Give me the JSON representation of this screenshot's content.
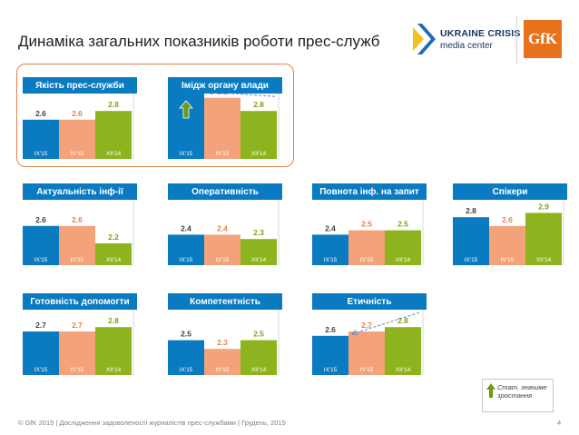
{
  "title": "Динаміка загальних показників роботи прес-служб",
  "logos": {
    "ucmc_line1": "UKRAINE CRISIS",
    "ucmc_line2": "media center",
    "gfk": "GfK"
  },
  "colors": {
    "header": "#0a7ac1",
    "bar_ix15": "#0a7ac1",
    "bar_iv15": "#f4a27a",
    "bar_xii14": "#8db41e",
    "label_ix15": "#404040",
    "label_iv15": "#e0834a",
    "label_xii14": "#8a9a1c",
    "significant_growth": "#6a9a1c",
    "trend_arrow": "#4a8fd0"
  },
  "chart_data": [
    {
      "type": "bar",
      "title": "Якість прес-служби",
      "categories": [
        "IX'15",
        "IV'15",
        "XII'14"
      ],
      "values": [
        2.6,
        2.6,
        2.8
      ],
      "significant": false,
      "trend_arrow": false
    },
    {
      "type": "bar",
      "title": "Імідж органу влади",
      "categories": [
        "IX'15",
        "IV'15",
        "XII'14"
      ],
      "values": [
        3.2,
        3.1,
        2.8
      ],
      "significant": true,
      "trend_arrow": true
    },
    {
      "type": "bar",
      "title": "Актуальність інф-ії",
      "categories": [
        "IX'15",
        "IV'15",
        "XII'14"
      ],
      "values": [
        2.6,
        2.6,
        2.2
      ],
      "significant": false,
      "trend_arrow": false
    },
    {
      "type": "bar",
      "title": "Оперативність",
      "categories": [
        "IX'15",
        "IV'15",
        "XII'14"
      ],
      "values": [
        2.4,
        2.4,
        2.3
      ],
      "significant": false,
      "trend_arrow": false
    },
    {
      "type": "bar",
      "title": "Повнота інф. на запит",
      "categories": [
        "IX'15",
        "IV'15",
        "XII'14"
      ],
      "values": [
        2.4,
        2.5,
        2.5
      ],
      "significant": false,
      "trend_arrow": false
    },
    {
      "type": "bar",
      "title": "Спікери",
      "categories": [
        "IX'15",
        "IV'15",
        "XII'14"
      ],
      "values": [
        2.8,
        2.6,
        2.9
      ],
      "significant": false,
      "trend_arrow": false
    },
    {
      "type": "bar",
      "title": "Готовність допомогти",
      "categories": [
        "IX'15",
        "IV'15",
        "XII'14"
      ],
      "values": [
        2.7,
        2.7,
        2.8
      ],
      "significant": false,
      "trend_arrow": false
    },
    {
      "type": "bar",
      "title": "Компетентність",
      "categories": [
        "IX'15",
        "IV'15",
        "XII'14"
      ],
      "values": [
        2.5,
        2.3,
        2.5
      ],
      "significant": false,
      "trend_arrow": false
    },
    {
      "type": "bar",
      "title": "Етичність",
      "categories": [
        "IX'15",
        "IV'15",
        "XII'14"
      ],
      "values": [
        2.6,
        2.7,
        2.8
      ],
      "significant": false,
      "trend_arrow": true
    }
  ],
  "legend_note": "Стат. значиме зростання",
  "footer": "© GfK 2015 | Дослідження задоволеності журналістів прес-службами | Грудень, 2015",
  "page_number": "4"
}
